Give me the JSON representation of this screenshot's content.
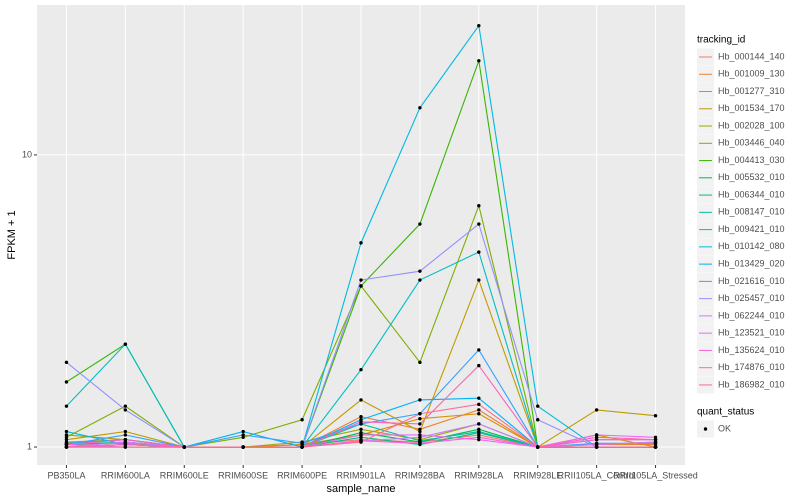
{
  "chart_data": {
    "type": "line",
    "x_label": "sample_name",
    "y_label": "FPKM + 1",
    "log_scale": true,
    "grid": true,
    "categories": [
      "PB350LA",
      "RRIM600LA",
      "RRIM600LE",
      "RRIM600SE",
      "RRIM600PE",
      "RRIM901LA",
      "RRIM928BA",
      "RRIM928LA",
      "RRIM928LE",
      "RRII105LA_Control",
      "RRII105LA_Stressed"
    ],
    "ylim": [
      0.868,
      32.6
    ],
    "yticks": [
      1,
      10
    ],
    "legend_title": "tracking_id",
    "legend_position": "right",
    "point_legend": {
      "title": "quant_status",
      "levels": [
        "OK"
      ]
    },
    "series": [
      {
        "name": "Hb_000144_140",
        "color": "#F8766D",
        "values": [
          1.02,
          1.03,
          1,
          1,
          1.02,
          1.06,
          1.04,
          1.1,
          1,
          1.02,
          1.04
        ]
      },
      {
        "name": "Hb_001009_130",
        "color": "#EA8331",
        "values": [
          1,
          1.02,
          1,
          1,
          1,
          1.27,
          1.15,
          1.34,
          1,
          1.02,
          1.02
        ]
      },
      {
        "name": "Hb_001277_310",
        "color": "#D89000",
        "values": [
          1.04,
          1.06,
          1,
          1,
          1.02,
          1.1,
          1.25,
          1.3,
          1,
          1.1,
          1
        ]
      },
      {
        "name": "Hb_001534_170",
        "color": "#C09B00",
        "values": [
          1.06,
          1.13,
          1,
          1,
          1,
          1.45,
          1.13,
          3.73,
          1,
          1.34,
          1.28
        ]
      },
      {
        "name": "Hb_002028_100",
        "color": "#A3A500",
        "values": [
          1.1,
          1.06,
          1,
          1,
          1.04,
          1.15,
          1.06,
          1.2,
          1,
          1.06,
          1.06
        ]
      },
      {
        "name": "Hb_003446_040",
        "color": "#7CAE00",
        "values": [
          1.08,
          1.38,
          1,
          1.08,
          1.24,
          3.56,
          1.95,
          6.7,
          1,
          1,
          1
        ]
      },
      {
        "name": "Hb_004413_030",
        "color": "#39B600",
        "values": [
          1.67,
          2.25,
          1,
          1,
          1,
          3.56,
          5.8,
          21,
          1,
          1,
          1
        ]
      },
      {
        "name": "Hb_005532_010",
        "color": "#00BB4E",
        "values": [
          1,
          1.02,
          1,
          1,
          1,
          1.12,
          1.04,
          1.15,
          1,
          1,
          1
        ]
      },
      {
        "name": "Hb_006344_010",
        "color": "#00BF7D",
        "values": [
          1.02,
          1.04,
          1,
          1,
          1,
          1.08,
          1.02,
          1.12,
          1,
          1,
          1
        ]
      },
      {
        "name": "Hb_008147_010",
        "color": "#00C1A3",
        "values": [
          1,
          1,
          1,
          1,
          1,
          1.2,
          1.05,
          1.13,
          1,
          1,
          1
        ]
      },
      {
        "name": "Hb_009421_010",
        "color": "#00BFC4",
        "values": [
          1.38,
          2.25,
          1,
          1,
          1,
          1.84,
          3.73,
          4.65,
          1,
          1,
          1
        ]
      },
      {
        "name": "Hb_010142_080",
        "color": "#00BAE0",
        "values": [
          1.13,
          1.02,
          1,
          1,
          1,
          5,
          14.5,
          27.7,
          1.38,
          1,
          1
        ]
      },
      {
        "name": "Hb_013429_020",
        "color": "#00B0F6",
        "values": [
          1.03,
          1.06,
          1,
          1.13,
          1,
          1.24,
          1.45,
          1.47,
          1,
          1,
          1
        ]
      },
      {
        "name": "Hb_021616_010",
        "color": "#35A2FF",
        "values": [
          1.02,
          1.1,
          1,
          1.1,
          1.03,
          1.2,
          1.3,
          2.15,
          1,
          1.03,
          1.03
        ]
      },
      {
        "name": "Hb_025457_010",
        "color": "#9590FF",
        "values": [
          1.95,
          1.34,
          1,
          1,
          1,
          3.73,
          4,
          5.8,
          1.24,
          1,
          1
        ]
      },
      {
        "name": "Hb_062244_010",
        "color": "#C77CFF",
        "values": [
          1,
          1.04,
          1,
          1,
          1,
          1.05,
          1.08,
          1.2,
          1,
          1.02,
          1.04
        ]
      },
      {
        "name": "Hb_123521_010",
        "color": "#E76BF3",
        "values": [
          1.02,
          1,
          1,
          1,
          1,
          1.1,
          1.1,
          1.06,
          1,
          1.1,
          1.08
        ]
      },
      {
        "name": "Hb_135624_010",
        "color": "#FA62DB",
        "values": [
          1,
          1.02,
          1,
          1,
          1,
          1.05,
          1.03,
          1.08,
          1,
          1.06,
          1.06
        ]
      },
      {
        "name": "Hb_174876_010",
        "color": "#FF62BC",
        "values": [
          1.02,
          1.06,
          1,
          1,
          1,
          1.22,
          1.2,
          1.9,
          1,
          1.08,
          1.06
        ]
      },
      {
        "name": "Hb_186982_010",
        "color": "#FF6C90",
        "values": [
          1,
          1,
          1,
          1,
          1,
          1.04,
          1.3,
          1.4,
          1,
          1,
          1
        ]
      }
    ]
  }
}
